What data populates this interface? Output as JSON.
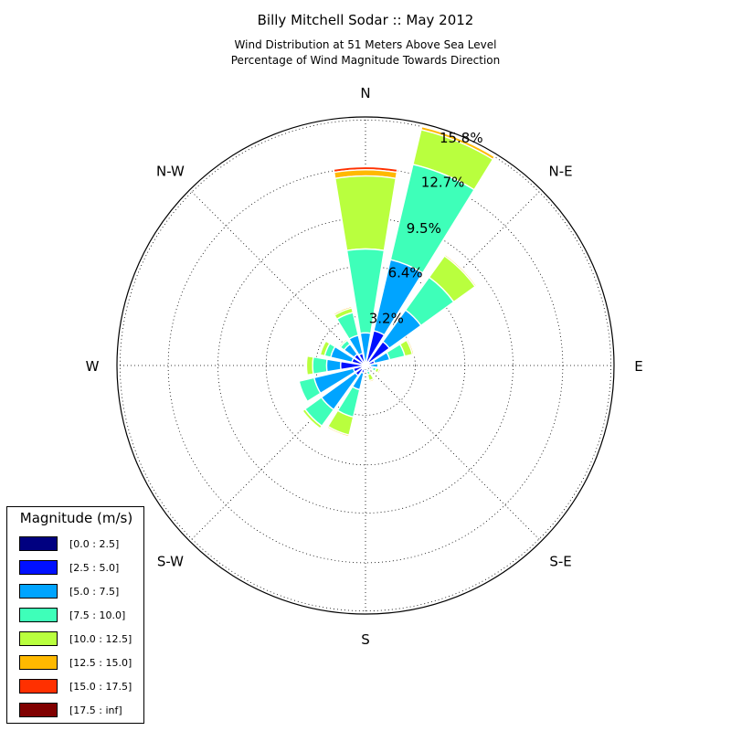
{
  "title": "Billy Mitchell Sodar :: May 2012",
  "subtitle_line1": "Wind Distribution at 51 Meters Above Sea Level",
  "subtitle_line2": "Percentage of Wind Magnitude Towards Direction",
  "chart_data": {
    "type": "windrose",
    "direction_labels": [
      "N",
      "N-E",
      "E",
      "S-E",
      "S",
      "S-W",
      "W",
      "N-W"
    ],
    "radial_ticks": [
      "3.2%",
      "6.4%",
      "9.5%",
      "12.7%",
      "15.8%"
    ],
    "radial_tick_values": [
      3.2,
      6.4,
      9.5,
      12.7,
      15.8
    ],
    "rmax": 16,
    "grid": true,
    "legend": {
      "title": "Magnitude (m/s)",
      "position": "lower-left",
      "entries": [
        {
          "label": "[0.0 : 2.5]",
          "color": "#000080"
        },
        {
          "label": "[2.5 : 5.0]",
          "color": "#0010ff"
        },
        {
          "label": "[5.0 : 7.5]",
          "color": "#00a4ff"
        },
        {
          "label": "[7.5 : 10.0]",
          "color": "#3effb9"
        },
        {
          "label": "[10.0 : 12.5]",
          "color": "#b9ff3e"
        },
        {
          "label": "[12.5 : 15.0]",
          "color": "#ffb900"
        },
        {
          "label": "[15.0 : 17.5]",
          "color": "#ff3000"
        },
        {
          "label": "[17.5 : inf]",
          "color": "#800000"
        }
      ]
    },
    "sector_width_deg": 22.5,
    "sectors": [
      {
        "direction_deg": 0,
        "cumulative": [
          0.2,
          0.2,
          2.1,
          7.5,
          12.2,
          12.6,
          12.8,
          12.8
        ]
      },
      {
        "direction_deg": 22.5,
        "cumulative": [
          0.2,
          2.3,
          7.0,
          13.3,
          15.6,
          15.8,
          15.8,
          15.8
        ]
      },
      {
        "direction_deg": 45,
        "cumulative": [
          0.3,
          1.9,
          4.4,
          7.0,
          8.7,
          8.8,
          8.8,
          8.8
        ]
      },
      {
        "direction_deg": 67.5,
        "cumulative": [
          0.2,
          0.6,
          1.6,
          2.6,
          3.1,
          3.2,
          3.2,
          3.2
        ]
      },
      {
        "direction_deg": 90,
        "cumulative": [
          0.1,
          0.3,
          0.8,
          0.8,
          0.8,
          0.8,
          0.8,
          0.8
        ]
      },
      {
        "direction_deg": 112.5,
        "cumulative": [
          0.1,
          0.4,
          0.5,
          0.7,
          0.9,
          1.0,
          1.0,
          1.0
        ]
      },
      {
        "direction_deg": 135,
        "cumulative": [
          0.05,
          0.1,
          0.15,
          0.15,
          0.15,
          0.15,
          0.15,
          0.15
        ]
      },
      {
        "direction_deg": 157.5,
        "cumulative": [
          0.1,
          0.2,
          0.4,
          0.6,
          1.0,
          1.1,
          1.1,
          1.1
        ]
      },
      {
        "direction_deg": 180,
        "cumulative": [
          0.1,
          0.2,
          0.2,
          0.2,
          0.2,
          0.2,
          0.2,
          0.2
        ]
      },
      {
        "direction_deg": 202.5,
        "cumulative": [
          0.2,
          0.5,
          1.6,
          3.4,
          4.6,
          4.7,
          4.7,
          4.7
        ]
      },
      {
        "direction_deg": 225,
        "cumulative": [
          0.3,
          0.8,
          3.5,
          4.8,
          5.0,
          5.0,
          5.0,
          5.0
        ]
      },
      {
        "direction_deg": 247.5,
        "cumulative": [
          0.2,
          0.8,
          3.4,
          4.4,
          4.4,
          4.4,
          4.4,
          4.4
        ]
      },
      {
        "direction_deg": 270,
        "cumulative": [
          0.2,
          1.6,
          2.5,
          3.4,
          3.8,
          3.8,
          3.8,
          3.8
        ]
      },
      {
        "direction_deg": 292.5,
        "cumulative": [
          0.2,
          0.9,
          2.3,
          2.7,
          3.0,
          3.0,
          3.0,
          3.0
        ]
      },
      {
        "direction_deg": 315,
        "cumulative": [
          0.2,
          0.9,
          1.7,
          2.0,
          2.1,
          2.1,
          2.1,
          2.1
        ]
      },
      {
        "direction_deg": 337.5,
        "cumulative": [
          0.2,
          0.8,
          2.0,
          3.5,
          3.8,
          3.9,
          3.9,
          3.9
        ]
      }
    ]
  }
}
